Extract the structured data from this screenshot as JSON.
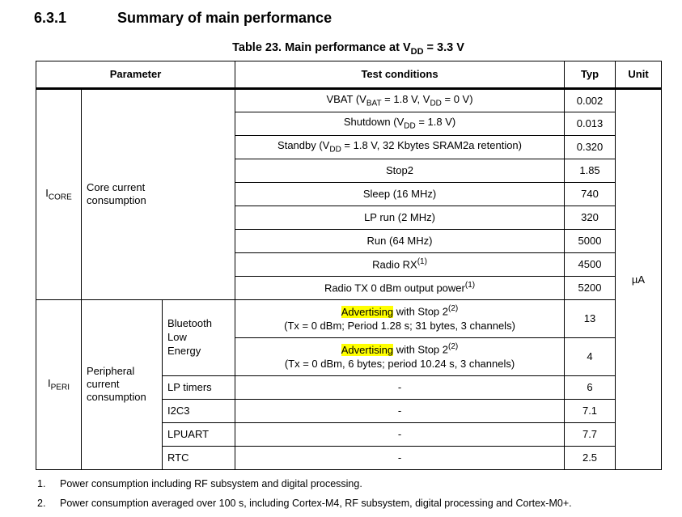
{
  "page": {
    "section_number": "6.3.1",
    "section_title": "Summary of main performance",
    "caption": {
      "t1": "Table 23. Main performance at V",
      "sub": "DD",
      "t2": " = 3.3 V"
    }
  },
  "table": {
    "highlight_color": "#ffff00",
    "headers": {
      "parameter": "Parameter",
      "test_conditions": "Test conditions",
      "typ": "Typ",
      "unit": "Unit"
    },
    "unit_value": "µA",
    "core": {
      "symbol": {
        "t": "I",
        "sub": "CORE"
      },
      "label": "Core current consumption",
      "rows": [
        {
          "cond": {
            "t1": "VBAT (V",
            "s1": "BAT",
            "t2": " = 1.8 V, V",
            "s2": "DD",
            "t3": " = 0 V)"
          },
          "typ": "0.002"
        },
        {
          "cond": {
            "t1": "Shutdown (V",
            "s1": "DD",
            "t2": " = 1.8 V)"
          },
          "typ": "0.013"
        },
        {
          "cond": {
            "t1": "Standby (V",
            "s1": "DD",
            "t2": " = 1.8 V, 32 Kbytes SRAM2a retention)"
          },
          "typ": "0.320"
        },
        {
          "cond": {
            "t1": "Stop2"
          },
          "typ": "1.85"
        },
        {
          "cond": {
            "t1": "Sleep (16 MHz)"
          },
          "typ": "740"
        },
        {
          "cond": {
            "t1": "LP run (2 MHz)"
          },
          "typ": "320"
        },
        {
          "cond": {
            "t1": "Run (64 MHz)"
          },
          "typ": "5000"
        },
        {
          "cond": {
            "t1": "Radio RX",
            "sup": "(1)"
          },
          "typ": "4500"
        },
        {
          "cond": {
            "t1": "Radio TX 0 dBm output power",
            "sup": "(1)"
          },
          "typ": "5200"
        }
      ]
    },
    "peri": {
      "symbol": {
        "t": "I",
        "sub": "PERI"
      },
      "label": "Peripheral current consumption",
      "ble": {
        "label": "Bluetooth Low Energy",
        "rows": [
          {
            "hl": "Advertising",
            "t1": " with Stop 2",
            "sup": "(2)",
            "line2": "(Tx = 0 dBm; Period 1.28 s; 31 bytes, 3 channels)",
            "typ": "13"
          },
          {
            "hl": "Advertising",
            "t1": " with Stop 2",
            "sup": "(2)",
            "line2": "(Tx = 0 dBm, 6 bytes; period 10.24 s, 3 channels)",
            "typ": "4"
          }
        ]
      },
      "rows": [
        {
          "label": "LP timers",
          "cond": "-",
          "typ": "6"
        },
        {
          "label": "I2C3",
          "cond": "-",
          "typ": "7.1"
        },
        {
          "label": "LPUART",
          "cond": "-",
          "typ": "7.7"
        },
        {
          "label": "RTC",
          "cond": "-",
          "typ": "2.5"
        }
      ]
    }
  },
  "footnotes": [
    {
      "marker": "1.",
      "text": "Power consumption including RF subsystem and digital processing."
    },
    {
      "marker": "2.",
      "text": "Power consumption averaged over 100 s, including Cortex-M4, RF subsystem, digital processing and Cortex-M0+."
    }
  ]
}
